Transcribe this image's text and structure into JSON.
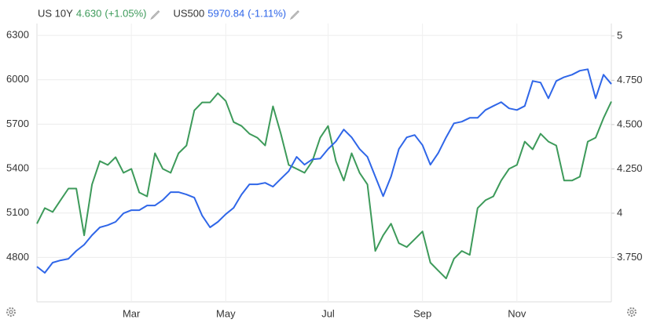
{
  "chart_data": {
    "type": "line",
    "series": [
      {
        "name": "US 10Y",
        "last": "4.630",
        "change": "(+1.05%)",
        "color": "#3d9a5a",
        "axis": "y2",
        "values": [
          3.941,
          4.029,
          4.007,
          4.073,
          4.139,
          4.139,
          3.875,
          4.162,
          4.294,
          4.272,
          4.316,
          4.228,
          4.25,
          4.117,
          4.095,
          4.338,
          4.25,
          4.228,
          4.338,
          4.382,
          4.58,
          4.625,
          4.625,
          4.677,
          4.633,
          4.514,
          4.492,
          4.448,
          4.426,
          4.382,
          4.603,
          4.448,
          4.272,
          4.25,
          4.228,
          4.294,
          4.426,
          4.492,
          4.294,
          4.184,
          4.338,
          4.228,
          4.162,
          3.787,
          3.875,
          3.941,
          3.831,
          3.809,
          3.853,
          3.897,
          3.721,
          3.676,
          3.632,
          3.743,
          3.787,
          3.765,
          4.029,
          4.073,
          4.095,
          4.184,
          4.25,
          4.272,
          4.404,
          4.36,
          4.448,
          4.404,
          4.382,
          4.184,
          4.184,
          4.206,
          4.404,
          4.426,
          4.536,
          4.63
        ]
      },
      {
        "name": "US500",
        "last": "5970.84",
        "change": "(-1.11%)",
        "color": "#2f66e8",
        "values": [
          4738,
          4696,
          4765,
          4780,
          4791,
          4844,
          4886,
          4950,
          5003,
          5018,
          5040,
          5098,
          5119,
          5119,
          5151,
          5151,
          5188,
          5241,
          5241,
          5225,
          5204,
          5082,
          5003,
          5040,
          5092,
          5135,
          5225,
          5294,
          5294,
          5304,
          5278,
          5331,
          5383,
          5479,
          5426,
          5463,
          5468,
          5532,
          5584,
          5664,
          5611,
          5532,
          5479,
          5346,
          5214,
          5346,
          5532,
          5611,
          5627,
          5558,
          5426,
          5505,
          5611,
          5706,
          5717,
          5743,
          5743,
          5796,
          5823,
          5849,
          5807,
          5796,
          5823,
          5992,
          5981,
          5875,
          5992,
          6018,
          6034,
          6061,
          6071,
          5875,
          6034,
          5971
        ]
      }
    ],
    "xlim": [
      0,
      73
    ],
    "xticks": [
      {
        "value": 12,
        "label": "Mar"
      },
      {
        "value": 24,
        "label": "May"
      },
      {
        "value": 37,
        "label": "Jul"
      },
      {
        "value": 49,
        "label": "Sep"
      },
      {
        "value": 61,
        "label": "Nov"
      }
    ],
    "ylim": [
      4500,
      6380
    ],
    "yticks": [
      4800,
      5100,
      5400,
      5700,
      6000,
      6300
    ],
    "y2lim": [
      3.5,
      5.07
    ],
    "y2ticks": [
      {
        "value": 3.75,
        "label": "3.750"
      },
      4,
      {
        "value": 4.25,
        "label": "4.250"
      },
      {
        "value": 4.5,
        "label": "4.500"
      },
      {
        "value": 4.75,
        "label": "4.750"
      },
      5
    ],
    "grid": true
  }
}
